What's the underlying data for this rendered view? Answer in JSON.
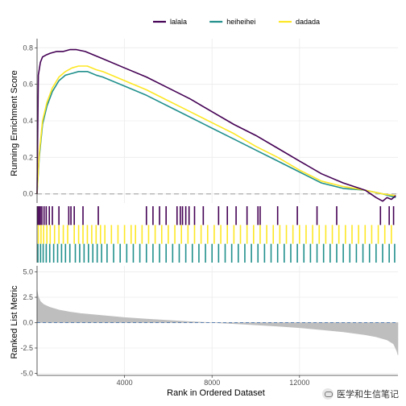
{
  "chart_data": {
    "type": "line",
    "legend": {
      "placement": "top",
      "entries": [
        "lalala",
        "heiheihei",
        "dadada"
      ]
    },
    "colors": {
      "lalala": "#440154",
      "heiheihei": "#21908C",
      "dadada": "#FDE725",
      "metric": "#BEBEBE",
      "zero_line": "#B3B3B3",
      "metric_zero_line": "#5A7FB0"
    },
    "xlabel": "Rank in Ordered Dataset",
    "xlim": [
      0,
      16500
    ],
    "x_ticks": [
      {
        "value": 4000,
        "label": "4000"
      },
      {
        "value": 8000,
        "label": "8000"
      },
      {
        "value": 12000,
        "label": "12000"
      }
    ],
    "running_es": {
      "ylabel": "Running Enrichment Score",
      "ylim": [
        -0.05,
        0.85
      ],
      "y_ticks": [
        {
          "value": 0.0,
          "label": "0.0"
        },
        {
          "value": 0.2,
          "label": "0.2"
        },
        {
          "value": 0.4,
          "label": "0.4"
        },
        {
          "value": 0.6,
          "label": "0.6"
        },
        {
          "value": 0.8,
          "label": "0.8"
        }
      ],
      "series": [
        {
          "name": "lalala",
          "x": [
            0,
            60,
            150,
            250,
            400,
            600,
            900,
            1200,
            1500,
            1800,
            2200,
            2600,
            3000,
            4000,
            5000,
            6000,
            7000,
            8000,
            9000,
            10000,
            11000,
            12000,
            13000,
            14000,
            15000,
            15500,
            15800,
            16000,
            16200,
            16400
          ],
          "y": [
            0.0,
            0.65,
            0.72,
            0.75,
            0.76,
            0.77,
            0.78,
            0.78,
            0.79,
            0.79,
            0.78,
            0.76,
            0.74,
            0.69,
            0.64,
            0.58,
            0.52,
            0.45,
            0.38,
            0.32,
            0.25,
            0.18,
            0.11,
            0.06,
            0.02,
            -0.02,
            -0.04,
            -0.02,
            -0.03,
            -0.01
          ]
        },
        {
          "name": "heiheihei",
          "x": [
            0,
            100,
            250,
            450,
            700,
            1000,
            1300,
            1600,
            1900,
            2300,
            2700,
            3000,
            4000,
            5000,
            6000,
            7000,
            8000,
            9000,
            10000,
            11000,
            12000,
            13000,
            14000,
            15000,
            15800,
            16400
          ],
          "y": [
            0.0,
            0.2,
            0.38,
            0.48,
            0.56,
            0.62,
            0.65,
            0.66,
            0.67,
            0.67,
            0.65,
            0.64,
            0.59,
            0.54,
            0.48,
            0.42,
            0.36,
            0.3,
            0.24,
            0.18,
            0.12,
            0.06,
            0.03,
            0.02,
            0.0,
            -0.02
          ]
        },
        {
          "name": "dadada",
          "x": [
            0,
            100,
            250,
            450,
            700,
            1000,
            1300,
            1600,
            1900,
            2300,
            2700,
            3000,
            4000,
            5000,
            6000,
            7000,
            8000,
            9000,
            10000,
            11000,
            12000,
            13000,
            14000,
            15000,
            15800,
            16400
          ],
          "y": [
            0.0,
            0.22,
            0.4,
            0.5,
            0.58,
            0.64,
            0.67,
            0.69,
            0.7,
            0.7,
            0.68,
            0.67,
            0.62,
            0.57,
            0.51,
            0.45,
            0.39,
            0.33,
            0.26,
            0.2,
            0.13,
            0.07,
            0.04,
            0.02,
            0.0,
            -0.01
          ]
        }
      ]
    },
    "gene_hits": [
      {
        "name": "lalala",
        "x": [
          30,
          90,
          150,
          220,
          320,
          420,
          560,
          700,
          1000,
          1450,
          1550,
          1700,
          2100,
          2800,
          5000,
          5300,
          5600,
          5900,
          6400,
          6550,
          6650,
          6800,
          6950,
          7200,
          7600,
          8300,
          8700,
          9100,
          9600,
          10100,
          10200,
          11000,
          11900,
          12800,
          13700,
          15700,
          16100,
          16300
        ]
      },
      {
        "name": "dadada",
        "x": [
          60,
          180,
          300,
          450,
          600,
          800,
          1000,
          1200,
          1400,
          1700,
          1900,
          2100,
          2300,
          2500,
          2700,
          2900,
          3100,
          3400,
          3700,
          4000,
          4300,
          4500,
          4800,
          5100,
          5400,
          5700,
          6000,
          6300,
          6600,
          6900,
          7200,
          7500,
          7800,
          8100,
          8400,
          8700,
          9000,
          9300,
          9600,
          9900,
          10200,
          10500,
          10800,
          11100,
          11400,
          11700,
          12000,
          12300,
          12600,
          12900,
          13200,
          13500,
          13800,
          14100,
          14400,
          14700,
          15000,
          15300,
          15600,
          15900,
          16200
        ]
      },
      {
        "name": "heiheihei",
        "x": [
          40,
          160,
          280,
          420,
          580,
          760,
          940,
          1120,
          1300,
          1500,
          1750,
          1950,
          2150,
          2350,
          2550,
          2750,
          2950,
          3200,
          3500,
          3800,
          4100,
          4400,
          4700,
          5000,
          5300,
          5600,
          5900,
          6200,
          6500,
          6800,
          7100,
          7400,
          7700,
          8000,
          8300,
          8600,
          8900,
          9200,
          9500,
          9800,
          10100,
          10400,
          10700,
          11000,
          11300,
          11600,
          11900,
          12200,
          12500,
          12800,
          13100,
          13400,
          13700,
          14000,
          14300,
          14600,
          14900,
          15200,
          15500,
          15800,
          16100,
          16350
        ]
      }
    ],
    "ranked_metric": {
      "ylabel": "Ranked List Metric",
      "ylim": [
        -5.2,
        5.6
      ],
      "y_ticks": [
        {
          "value": 5.0,
          "label": "5.0"
        },
        {
          "value": 2.5,
          "label": "2.5"
        },
        {
          "value": 0.0,
          "label": "0.0"
        },
        {
          "value": -2.5,
          "label": "-2.5"
        },
        {
          "value": -5.0,
          "label": "-5.0"
        }
      ],
      "x": [
        0,
        50,
        150,
        300,
        600,
        1000,
        1500,
        2000,
        3000,
        4000,
        5000,
        6000,
        7000,
        8000,
        9000,
        10000,
        11000,
        12000,
        13000,
        14000,
        15000,
        15500,
        16000,
        16300,
        16450,
        16500
      ],
      "y": [
        3.2,
        2.6,
        2.1,
        1.8,
        1.5,
        1.25,
        1.05,
        0.9,
        0.7,
        0.5,
        0.35,
        0.22,
        0.1,
        0.0,
        -0.1,
        -0.22,
        -0.35,
        -0.5,
        -0.7,
        -0.9,
        -1.2,
        -1.4,
        -1.7,
        -2.1,
        -2.8,
        -3.2
      ]
    }
  }
}
